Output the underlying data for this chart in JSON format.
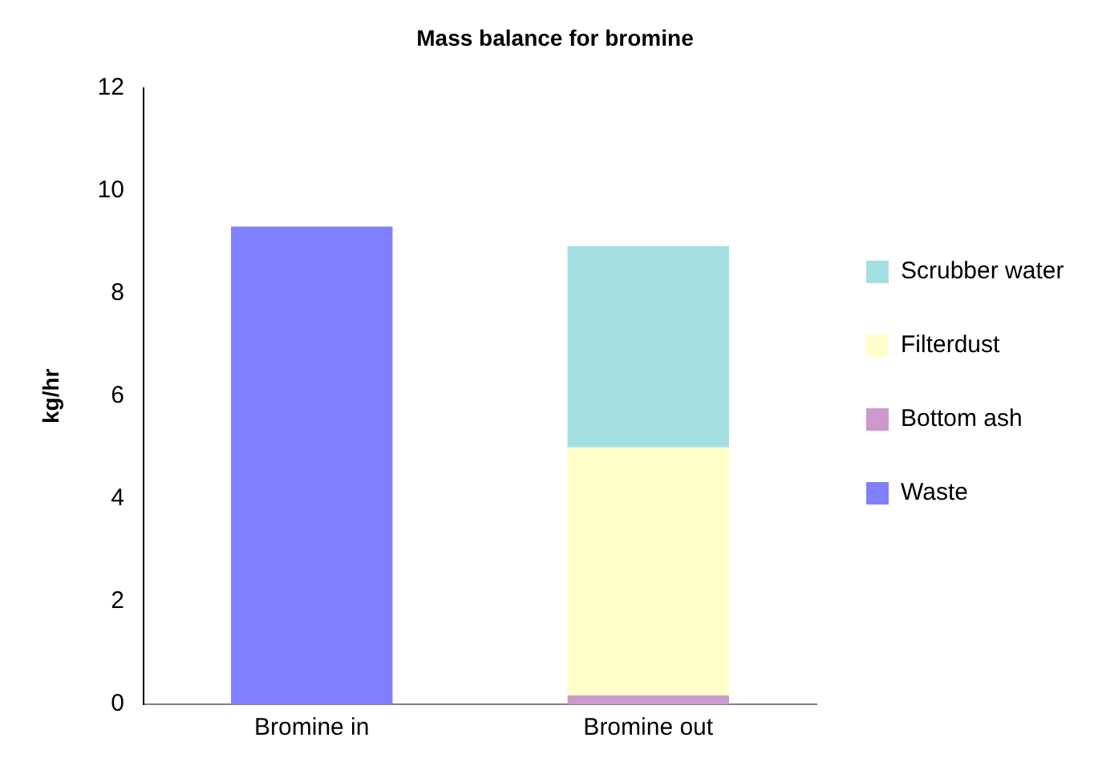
{
  "chart_data": {
    "type": "bar",
    "title": "Mass balance for bromine",
    "ylabel": "kg/hr",
    "categories": [
      "Bromine in",
      "Bromine out"
    ],
    "stacked": true,
    "legend": "right",
    "grid": false,
    "ylim": [
      0,
      12
    ],
    "yticks": [
      0,
      2,
      4,
      6,
      8,
      10,
      12
    ],
    "series": [
      {
        "name": "Waste",
        "color": "#8080ff",
        "values": [
          9.3,
          null
        ]
      },
      {
        "name": "Bottom ash",
        "color": "#cc99cc",
        "values": [
          null,
          0.17
        ]
      },
      {
        "name": "Filterdust",
        "color": "#ffffcc",
        "values": [
          null,
          4.83
        ]
      },
      {
        "name": "Scrubber water",
        "color": "#a3dfe0",
        "values": [
          null,
          3.92
        ]
      }
    ]
  }
}
